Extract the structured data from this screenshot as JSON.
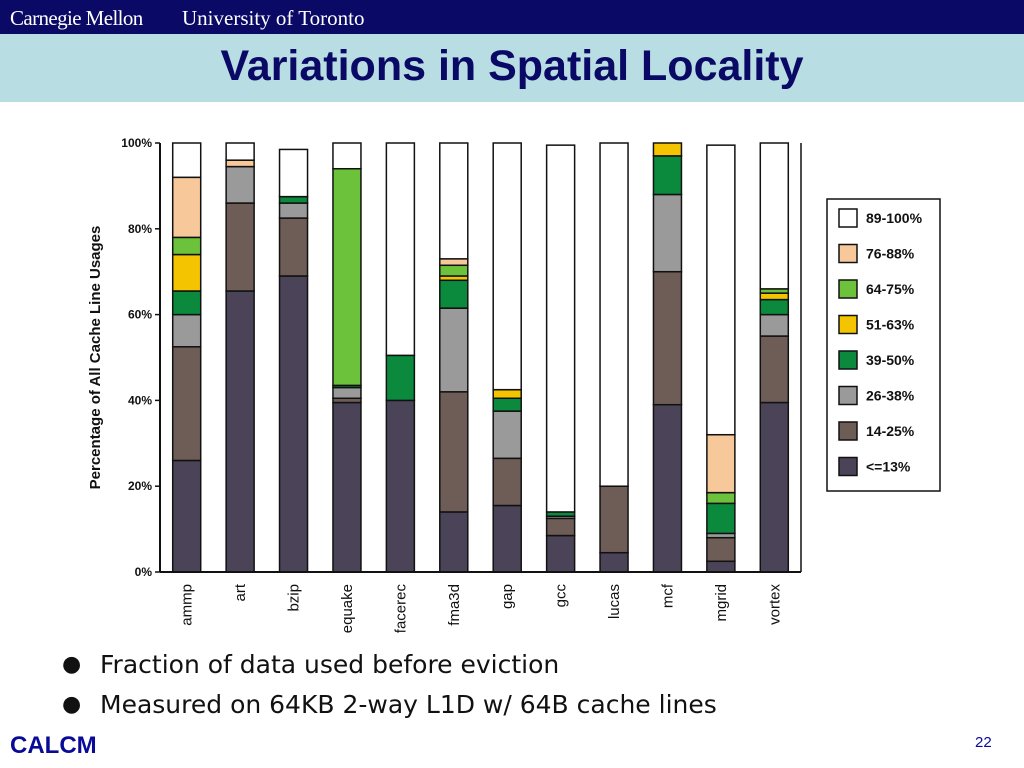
{
  "header": {
    "cmu": "Carnegie Mellon",
    "uoft": "University of Toronto"
  },
  "slide": {
    "title": "Variations in Spatial Locality",
    "page_number": "22",
    "footer_logo": "CALCM"
  },
  "bullets": [
    "Fraction of data used before eviction",
    "Measured on 64KB 2-way L1D w/ 64B cache lines"
  ],
  "colors": {
    "topbar": "#0a0a66",
    "title_band": "#b8dde3",
    "title_text": "#0a0a66"
  },
  "chart_data": {
    "type": "bar",
    "stacked": true,
    "ylabel": "Percentage of All Cache Line Usages",
    "xlabel": "",
    "ylim": [
      0,
      100
    ],
    "yticks": [
      "0%",
      "20%",
      "40%",
      "60%",
      "80%",
      "100%"
    ],
    "legend_position": "right",
    "categories": [
      "ammp",
      "art",
      "bzip",
      "equake",
      "facerec",
      "fma3d",
      "gap",
      "gcc",
      "lucas",
      "mcf",
      "mgrid",
      "vortex"
    ],
    "series": [
      {
        "name": "<=13%",
        "color": "#4b4459",
        "values": [
          26,
          65.5,
          69,
          39.5,
          40,
          14,
          15.5,
          8.5,
          4.5,
          39,
          2.5,
          39.5
        ]
      },
      {
        "name": "14-25%",
        "color": "#6e5c57",
        "values": [
          26.5,
          20.5,
          13.5,
          1,
          0,
          28,
          11,
          4,
          15.5,
          31,
          5.5,
          15.5
        ]
      },
      {
        "name": "26-38%",
        "color": "#9a9a9a",
        "values": [
          7.5,
          8.5,
          3.5,
          2.5,
          0,
          19.5,
          11,
          0.5,
          0,
          18,
          1,
          5
        ]
      },
      {
        "name": "39-50%",
        "color": "#0b8a3e",
        "values": [
          5.5,
          0,
          1.5,
          0.5,
          10.5,
          6.5,
          3,
          1,
          0,
          9,
          7,
          3.5
        ]
      },
      {
        "name": "51-63%",
        "color": "#f5c400",
        "values": [
          8.5,
          0,
          0,
          0,
          0,
          1,
          2,
          0,
          0,
          3,
          0,
          1.5
        ]
      },
      {
        "name": "64-75%",
        "color": "#6cc23a",
        "values": [
          4,
          0,
          0,
          50.5,
          0,
          2.5,
          0,
          0,
          0,
          0,
          2.5,
          1
        ]
      },
      {
        "name": "76-88%",
        "color": "#f7c89a",
        "values": [
          14,
          1.5,
          0,
          0,
          0,
          1.5,
          0,
          0,
          0,
          0,
          13.5,
          0
        ]
      },
      {
        "name": "89-100%",
        "color": "#ffffff",
        "values": [
          8,
          4,
          11,
          6,
          49.5,
          27,
          57.5,
          85.5,
          80,
          0,
          67.5,
          34
        ]
      }
    ]
  }
}
